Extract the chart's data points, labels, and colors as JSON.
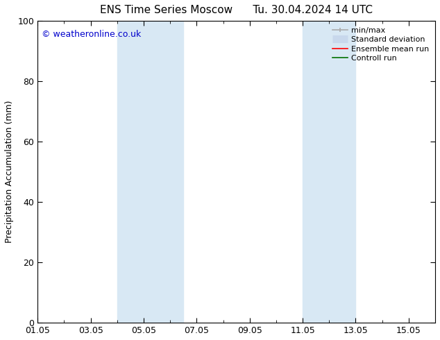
{
  "title_left": "ENS Time Series Moscow",
  "title_right": "Tu. 30.04.2024 14 UTC",
  "ylabel": "Precipitation Accumulation (mm)",
  "watermark": "© weatheronline.co.uk",
  "watermark_color": "#0000cc",
  "ylim": [
    0,
    100
  ],
  "yticks": [
    0,
    20,
    40,
    60,
    80,
    100
  ],
  "x_start": "2024-05-01",
  "x_end": "2024-05-16",
  "xtick_labels": [
    "01.05",
    "03.05",
    "05.05",
    "07.05",
    "09.05",
    "11.05",
    "13.05",
    "15.05"
  ],
  "xtick_positions_days": [
    0,
    2,
    4,
    6,
    8,
    10,
    12,
    14
  ],
  "shaded_bands": [
    {
      "x0_day": 3.0,
      "x1_day": 5.5
    },
    {
      "x0_day": 10.0,
      "x1_day": 12.0
    }
  ],
  "band_color": "#d8e8f4",
  "band_alpha": 1.0,
  "legend_items": [
    {
      "label": "min/max",
      "color": "#aaaaaa",
      "lw": 1.5
    },
    {
      "label": "Standard deviation",
      "color": "#cccccc",
      "lw": 6
    },
    {
      "label": "Ensemble mean run",
      "color": "#ff0000",
      "lw": 1.5
    },
    {
      "label": "Controll run",
      "color": "#008000",
      "lw": 1.5
    }
  ],
  "title_fontsize": 11,
  "label_fontsize": 9,
  "tick_fontsize": 9,
  "legend_fontsize": 8,
  "watermark_fontsize": 9,
  "background_color": "#ffffff",
  "plot_bg_color": "#ffffff",
  "spine_color": "#000000",
  "tick_color": "#000000"
}
